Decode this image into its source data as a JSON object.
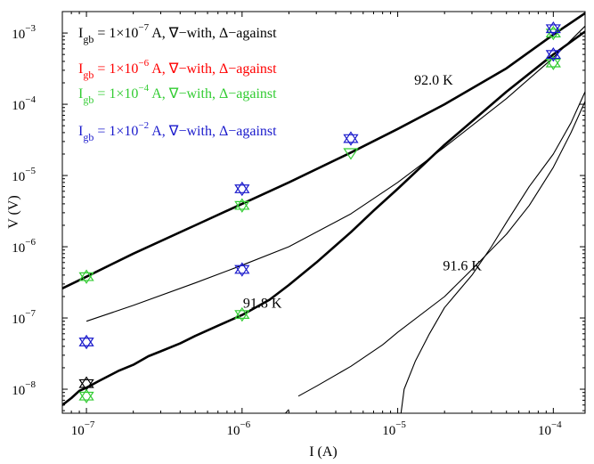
{
  "chart_data": {
    "type": "line",
    "xscale": "log",
    "yscale": "log",
    "xlim": [
      7e-08,
      0.00016
    ],
    "ylim": [
      4.6e-09,
      0.002
    ],
    "xlabel": "I (A)",
    "ylabel": "V (V)",
    "xticks": [
      {
        "value": 1e-07,
        "base": "10",
        "exp": "−7"
      },
      {
        "value": 1e-06,
        "base": "10",
        "exp": "−6"
      },
      {
        "value": 1e-05,
        "base": "10",
        "exp": "−5"
      },
      {
        "value": 0.0001,
        "base": "10",
        "exp": "−4"
      }
    ],
    "yticks": [
      {
        "value": 1e-08,
        "base": "10",
        "exp": "−8"
      },
      {
        "value": 1e-07,
        "base": "10",
        "exp": "−7"
      },
      {
        "value": 1e-06,
        "base": "10",
        "exp": "−6"
      },
      {
        "value": 1e-05,
        "base": "10",
        "exp": "−5"
      },
      {
        "value": 0.0001,
        "base": "10",
        "exp": "−4"
      },
      {
        "value": 0.001,
        "base": "10",
        "exp": "−3"
      }
    ],
    "grid": false,
    "legend_position": "top-left",
    "annotations": [
      {
        "text": "92.0 K",
        "x": 1.7e-05,
        "y": 0.00019
      },
      {
        "text": "91.8 K",
        "x": 1.35e-06,
        "y": 1.4e-07
      },
      {
        "text": "91.6 K",
        "x": 2.6e-05,
        "y": 4.7e-07
      }
    ],
    "curves": [
      {
        "weight": "thick",
        "x": [
          7e-08,
          1e-07,
          2e-07,
          5e-07,
          1e-06,
          2e-06,
          5e-06,
          1e-05,
          2e-05,
          5e-05,
          0.0001,
          0.00016
        ],
        "y": [
          2.6e-07,
          3.8e-07,
          8e-07,
          2e-06,
          4e-06,
          8e-06,
          2.1e-05,
          4.5e-05,
          0.0001,
          0.00032,
          0.00095,
          0.0019
        ]
      },
      {
        "weight": "thin",
        "x": [
          1e-07,
          2e-07,
          5e-07,
          1e-06,
          2e-06,
          5e-06,
          1e-05,
          2e-05,
          5e-05,
          0.0001,
          0.00016
        ],
        "y": [
          9e-08,
          1.5e-07,
          3.1e-07,
          5.5e-07,
          1e-06,
          2.9e-06,
          8e-06,
          2.5e-05,
          0.00012,
          0.00045,
          0.00125
        ]
      },
      {
        "weight": "thick",
        "x": [
          7e-08,
          8e-08,
          9e-08,
          1e-07,
          1.2e-07,
          1.6e-07,
          2e-07,
          2.5e-07,
          3e-07,
          4e-07,
          5e-07,
          7e-07,
          1e-06,
          1.5e-06,
          2e-06,
          3e-06,
          5e-06,
          7e-06,
          1e-05,
          2e-05,
          5e-05,
          0.0001,
          0.00016
        ],
        "y": [
          6e-09,
          7.5e-09,
          9.5e-09,
          1.05e-08,
          1.3e-08,
          1.8e-08,
          2.2e-08,
          2.9e-08,
          3.4e-08,
          4.4e-08,
          5.6e-08,
          7.8e-08,
          1.1e-07,
          1.8e-07,
          2.9e-07,
          6e-07,
          1.6e-06,
          3.2e-06,
          6.5e-06,
          2.7e-05,
          0.00015,
          0.0005,
          0.00105
        ]
      },
      {
        "weight": "thin",
        "x": [
          2.3e-06,
          3e-06,
          5e-06,
          8e-06,
          1e-05,
          2e-05,
          3e-05,
          5e-05,
          7e-05,
          0.0001,
          0.00013,
          0.00016
        ],
        "y": [
          8e-09,
          1.1e-08,
          2.1e-08,
          4.2e-08,
          6.3e-08,
          2e-07,
          4.8e-07,
          1.5e-06,
          3.8e-06,
          1.3e-05,
          4e-05,
          0.00011
        ]
      },
      {
        "weight": "thin",
        "x": [
          1.9e-06,
          2e-06
        ],
        "y": [
          4.6e-09,
          5.2e-09
        ]
      },
      {
        "weight": "thin",
        "x": [
          1.05e-05,
          1.1e-05,
          1.3e-05,
          1.6e-05,
          2e-05,
          3e-05,
          4e-05,
          5e-05,
          7e-05,
          0.0001,
          0.00013,
          0.00016
        ],
        "y": [
          4.6e-09,
          1e-08,
          2.5e-08,
          6e-08,
          1.4e-07,
          4e-07,
          1e-06,
          2.2e-06,
          7e-06,
          2e-05,
          5.5e-05,
          0.00015
        ]
      }
    ],
    "series": [
      {
        "name": "I gb = 1×10⁻⁷ A, ∇−with, Δ−against",
        "color": "#000000",
        "points": [
          {
            "x": 1e-07,
            "y": 1.2e-08,
            "shape": "star"
          }
        ]
      },
      {
        "name": "I gb = 1×10⁻⁶ A, ∇−with, Δ−against",
        "color": "#ff0000",
        "points": []
      },
      {
        "name": "I gb = 1×10⁻⁴ A, ∇−with, Δ−against",
        "color": "#33cc33",
        "points": [
          {
            "x": 1e-07,
            "y": 3.8e-07,
            "shape": "star"
          },
          {
            "x": 1e-07,
            "y": 8e-09,
            "shape": "star"
          },
          {
            "x": 1e-06,
            "y": 3.8e-06,
            "shape": "star"
          },
          {
            "x": 1e-06,
            "y": 1.12e-07,
            "shape": "star"
          },
          {
            "x": 5e-06,
            "y": 2.1e-05,
            "shape": "down"
          },
          {
            "x": 0.0001,
            "y": 0.001,
            "shape": "star"
          },
          {
            "x": 0.0001,
            "y": 0.00038,
            "shape": "star"
          }
        ]
      },
      {
        "name": "I gb = 1×10⁻² A, ∇−with, Δ−against",
        "color": "#1a1acc",
        "points": [
          {
            "x": 1e-07,
            "y": 4.6e-08,
            "shape": "star"
          },
          {
            "x": 1e-06,
            "y": 6.5e-06,
            "shape": "star"
          },
          {
            "x": 1e-06,
            "y": 4.8e-07,
            "shape": "star"
          },
          {
            "x": 5e-06,
            "y": 3.3e-05,
            "shape": "star"
          },
          {
            "x": 0.0001,
            "y": 0.00115,
            "shape": "star"
          },
          {
            "x": 0.0001,
            "y": 0.0005,
            "shape": "star"
          }
        ]
      }
    ],
    "legend": [
      {
        "prefix": "I",
        "sub": "gb",
        "mid": " = 1×10",
        "exp": "−7",
        "suffix": " A, ∇−with, Δ−against",
        "color": "#000000"
      },
      {
        "prefix": "I",
        "sub": "gb",
        "mid": " = 1×10",
        "exp": "−6",
        "suffix": " A, ∇−with, Δ−against",
        "color": "#ff0000"
      },
      {
        "prefix": "I",
        "sub": "gb",
        "mid": " = 1×10",
        "exp": "−4",
        "suffix": " A, ∇−with, Δ−against",
        "color": "#33cc33"
      },
      {
        "prefix": "I",
        "sub": "gb",
        "mid": " = 1×10",
        "exp": "−2",
        "suffix": " A, ∇−with, Δ−against",
        "color": "#1a1acc"
      }
    ]
  }
}
